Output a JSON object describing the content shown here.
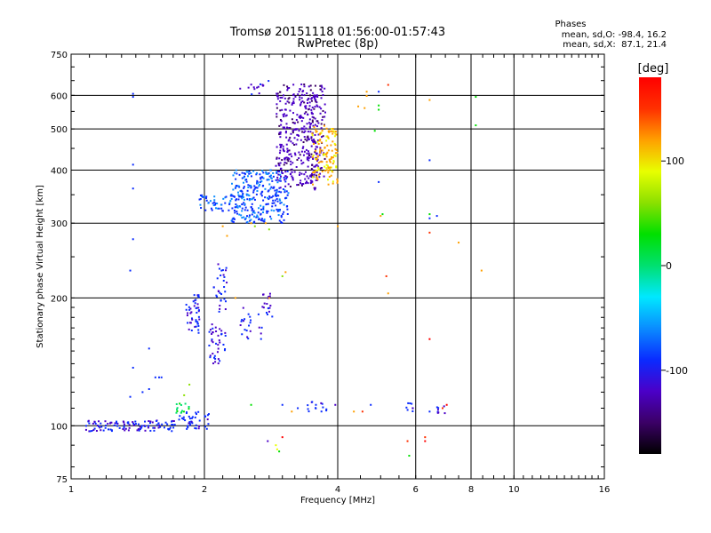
{
  "header": {
    "title_line1": "Tromsø 20151118 01:56:00-01:57:43",
    "title_line2": "RwPretec (8p)",
    "stats_heading": "Phases",
    "stats_line1": "mean, sd,O: -98.4, 16.2",
    "stats_line2": "mean, sd,X:  87.1, 21.4"
  },
  "colorbar": {
    "unit_label": "[deg]",
    "tick_labels": [
      "100",
      "0",
      "-100"
    ],
    "tick_values": [
      100,
      0,
      -100
    ],
    "range": [
      -180,
      180
    ],
    "colors": [
      "#000000",
      "#3b0066",
      "#4b00c8",
      "#0a2bff",
      "#0a8cff",
      "#00e8ff",
      "#00e070",
      "#00e000",
      "#8be000",
      "#e8ff00",
      "#ffa000",
      "#ff3000",
      "#ff0000"
    ]
  },
  "chart_data": {
    "type": "scatter",
    "xlabel": "Frequency [MHz]",
    "ylabel": "Stationary phase Virtual Height [km]",
    "xscale": "log",
    "yscale": "log",
    "xlim": [
      1,
      16
    ],
    "ylim": [
      75,
      750
    ],
    "x_ticks": [
      1,
      2,
      4,
      6,
      8,
      10,
      16
    ],
    "x_tick_labels": [
      "1",
      "2",
      "4",
      "6",
      "8",
      "10",
      "16"
    ],
    "y_ticks": [
      75,
      100,
      200,
      300,
      400,
      500,
      600,
      750
    ],
    "y_tick_labels": [
      "75",
      "100",
      "200",
      "300",
      "400",
      "500",
      "600",
      "750"
    ],
    "grid": true,
    "color_value": "phase",
    "clusters": [
      {
        "x": [
          1.08,
          1.75
        ],
        "y": [
          97,
          103
        ],
        "n": 110,
        "phase": -100
      },
      {
        "x": [
          1.75,
          2.05
        ],
        "y": [
          98,
          108
        ],
        "n": 40,
        "phase": -95
      },
      {
        "x": [
          1.72,
          1.85
        ],
        "y": [
          107,
          113
        ],
        "n": 14,
        "phase": 10
      },
      {
        "x": [
          1.82,
          1.95
        ],
        "y": [
          165,
          205
        ],
        "n": 45,
        "phase": -100
      },
      {
        "x": [
          2.05,
          2.25
        ],
        "y": [
          140,
          175
        ],
        "n": 40,
        "phase": -105
      },
      {
        "x": [
          2.1,
          2.25
        ],
        "y": [
          185,
          245
        ],
        "n": 30,
        "phase": -100
      },
      {
        "x": [
          2.4,
          2.7
        ],
        "y": [
          160,
          190
        ],
        "n": 22,
        "phase": -100
      },
      {
        "x": [
          2.7,
          2.85
        ],
        "y": [
          180,
          205
        ],
        "n": 18,
        "phase": -110
      },
      {
        "x": [
          1.95,
          2.5
        ],
        "y": [
          320,
          350
        ],
        "n": 65,
        "phase": -80
      },
      {
        "x": [
          2.3,
          3.1
        ],
        "y": [
          300,
          400
        ],
        "n": 280,
        "phase": -80
      },
      {
        "x": [
          2.9,
          3.6
        ],
        "y": [
          360,
          640
        ],
        "n": 330,
        "phase": -125
      },
      {
        "x": [
          3.4,
          3.75
        ],
        "y": [
          380,
          640
        ],
        "n": 100,
        "phase": -130
      },
      {
        "x": [
          3.5,
          4.0
        ],
        "y": [
          370,
          510
        ],
        "n": 130,
        "phase": 110
      },
      {
        "x": [
          2.4,
          2.8
        ],
        "y": [
          600,
          650
        ],
        "n": 14,
        "phase": -110
      },
      {
        "x": [
          3.4,
          3.8
        ],
        "y": [
          108,
          114
        ],
        "n": 14,
        "phase": -100
      },
      {
        "x": [
          5.7,
          6.0
        ],
        "y": [
          107,
          113
        ],
        "n": 8,
        "phase": -100
      },
      {
        "x": [
          6.7,
          7.0
        ],
        "y": [
          107,
          112
        ],
        "n": 8,
        "phase": -110
      }
    ],
    "points": [
      {
        "x": 1.38,
        "y": 605,
        "phase": -100
      },
      {
        "x": 1.38,
        "y": 595,
        "phase": -100
      },
      {
        "x": 1.38,
        "y": 412,
        "phase": -100
      },
      {
        "x": 1.38,
        "y": 362,
        "phase": -100
      },
      {
        "x": 1.38,
        "y": 275,
        "phase": -100
      },
      {
        "x": 1.36,
        "y": 232,
        "phase": -90
      },
      {
        "x": 1.38,
        "y": 137,
        "phase": -100
      },
      {
        "x": 1.36,
        "y": 117,
        "phase": -100
      },
      {
        "x": 1.5,
        "y": 152,
        "phase": -100
      },
      {
        "x": 1.55,
        "y": 130,
        "phase": -90
      },
      {
        "x": 1.58,
        "y": 130,
        "phase": -90
      },
      {
        "x": 1.6,
        "y": 130,
        "phase": -90
      },
      {
        "x": 1.45,
        "y": 120,
        "phase": -100
      },
      {
        "x": 1.5,
        "y": 122,
        "phase": -100
      },
      {
        "x": 1.8,
        "y": 118,
        "phase": 60
      },
      {
        "x": 1.85,
        "y": 125,
        "phase": 60
      },
      {
        "x": 2.55,
        "y": 300,
        "phase": 110
      },
      {
        "x": 2.75,
        "y": 300,
        "phase": 120
      },
      {
        "x": 2.8,
        "y": 290,
        "phase": 60
      },
      {
        "x": 2.6,
        "y": 295,
        "phase": 50
      },
      {
        "x": 3.05,
        "y": 230,
        "phase": 130
      },
      {
        "x": 3.0,
        "y": 225,
        "phase": 60
      },
      {
        "x": 2.2,
        "y": 295,
        "phase": 110
      },
      {
        "x": 2.25,
        "y": 280,
        "phase": 110
      },
      {
        "x": 2.35,
        "y": 200,
        "phase": 120
      },
      {
        "x": 2.8,
        "y": 200,
        "phase": 120
      },
      {
        "x": 2.78,
        "y": 92,
        "phase": -110
      },
      {
        "x": 2.92,
        "y": 88,
        "phase": 80
      },
      {
        "x": 2.95,
        "y": 87,
        "phase": 30
      },
      {
        "x": 2.9,
        "y": 90,
        "phase": 100
      },
      {
        "x": 3.0,
        "y": 94,
        "phase": 170
      },
      {
        "x": 3.15,
        "y": 108,
        "phase": 110
      },
      {
        "x": 3.0,
        "y": 112,
        "phase": -100
      },
      {
        "x": 3.25,
        "y": 110,
        "phase": -100
      },
      {
        "x": 2.55,
        "y": 112,
        "phase": 20
      },
      {
        "x": 3.95,
        "y": 112,
        "phase": -110
      },
      {
        "x": 4.0,
        "y": 295,
        "phase": 110
      },
      {
        "x": 4.35,
        "y": 108,
        "phase": 130
      },
      {
        "x": 4.55,
        "y": 108,
        "phase": 150
      },
      {
        "x": 4.75,
        "y": 112,
        "phase": -100
      },
      {
        "x": 4.65,
        "y": 612,
        "phase": 120
      },
      {
        "x": 4.65,
        "y": 598,
        "phase": 110
      },
      {
        "x": 4.95,
        "y": 612,
        "phase": -100
      },
      {
        "x": 4.95,
        "y": 568,
        "phase": 30
      },
      {
        "x": 4.95,
        "y": 555,
        "phase": 40
      },
      {
        "x": 4.6,
        "y": 560,
        "phase": 110
      },
      {
        "x": 4.45,
        "y": 565,
        "phase": 110
      },
      {
        "x": 5.2,
        "y": 635,
        "phase": 150
      },
      {
        "x": 4.85,
        "y": 495,
        "phase": 40
      },
      {
        "x": 4.95,
        "y": 375,
        "phase": -100
      },
      {
        "x": 5.05,
        "y": 315,
        "phase": 40
      },
      {
        "x": 5.0,
        "y": 312,
        "phase": 120
      },
      {
        "x": 5.15,
        "y": 225,
        "phase": 160
      },
      {
        "x": 5.2,
        "y": 205,
        "phase": 110
      },
      {
        "x": 5.75,
        "y": 92,
        "phase": 160
      },
      {
        "x": 5.8,
        "y": 85,
        "phase": 30
      },
      {
        "x": 6.3,
        "y": 92,
        "phase": 170
      },
      {
        "x": 6.3,
        "y": 94,
        "phase": 160
      },
      {
        "x": 6.45,
        "y": 585,
        "phase": 130
      },
      {
        "x": 6.45,
        "y": 422,
        "phase": -100
      },
      {
        "x": 6.45,
        "y": 315,
        "phase": 40
      },
      {
        "x": 6.45,
        "y": 308,
        "phase": -90
      },
      {
        "x": 6.45,
        "y": 285,
        "phase": 150
      },
      {
        "x": 6.45,
        "y": 160,
        "phase": 170
      },
      {
        "x": 6.45,
        "y": 108,
        "phase": -100
      },
      {
        "x": 6.7,
        "y": 312,
        "phase": -100
      },
      {
        "x": 6.9,
        "y": 110,
        "phase": 160
      },
      {
        "x": 7.05,
        "y": 112,
        "phase": 165
      },
      {
        "x": 7.5,
        "y": 270,
        "phase": 120
      },
      {
        "x": 8.2,
        "y": 595,
        "phase": 40
      },
      {
        "x": 8.2,
        "y": 510,
        "phase": 40
      },
      {
        "x": 8.45,
        "y": 232,
        "phase": 120
      }
    ]
  }
}
